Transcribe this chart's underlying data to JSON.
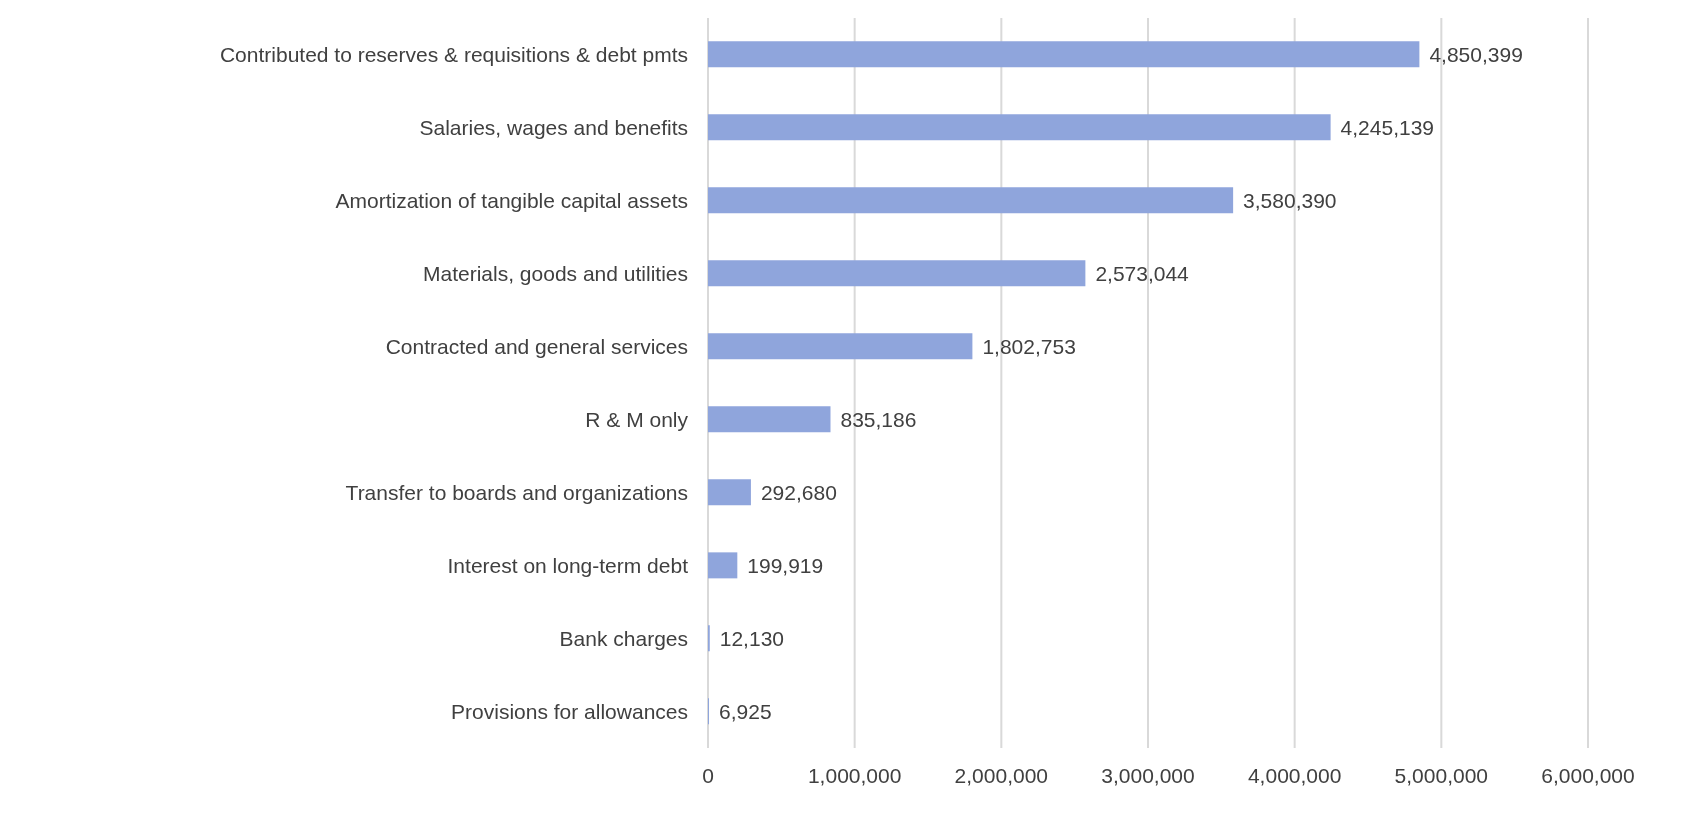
{
  "chart_data": {
    "type": "bar",
    "orientation": "horizontal",
    "categories": [
      "Contributed to reserves & requisitions & debt pmts",
      "Salaries, wages and benefits",
      "Amortization of tangible capital assets",
      "Materials, goods and utilities",
      "Contracted and general services",
      "R & M only",
      "Transfer to boards and organizations",
      "Interest on long-term debt",
      "Bank charges",
      "Provisions for allowances"
    ],
    "values": [
      4850399,
      4245139,
      3580390,
      2573044,
      1802753,
      835186,
      292680,
      199919,
      12130,
      6925
    ],
    "value_labels": [
      "4,850,399",
      "4,245,139",
      "3,580,390",
      "2,573,044",
      "1,802,753",
      "835,186",
      "292,680",
      "199,919",
      "12,130",
      "6,925"
    ],
    "color": "#8fa5dc",
    "xlim": [
      0,
      6000000
    ],
    "xticks": [
      {
        "value": 0,
        "label": "0"
      },
      {
        "value": 1000000,
        "label": "1,000,000"
      },
      {
        "value": 2000000,
        "label": "2,000,000"
      },
      {
        "value": 3000000,
        "label": "3,000,000"
      },
      {
        "value": 4000000,
        "label": "4,000,000"
      },
      {
        "value": 5000000,
        "label": "5,000,000"
      },
      {
        "value": 6000000,
        "label": "6,000,000"
      }
    ],
    "grid": "x"
  }
}
